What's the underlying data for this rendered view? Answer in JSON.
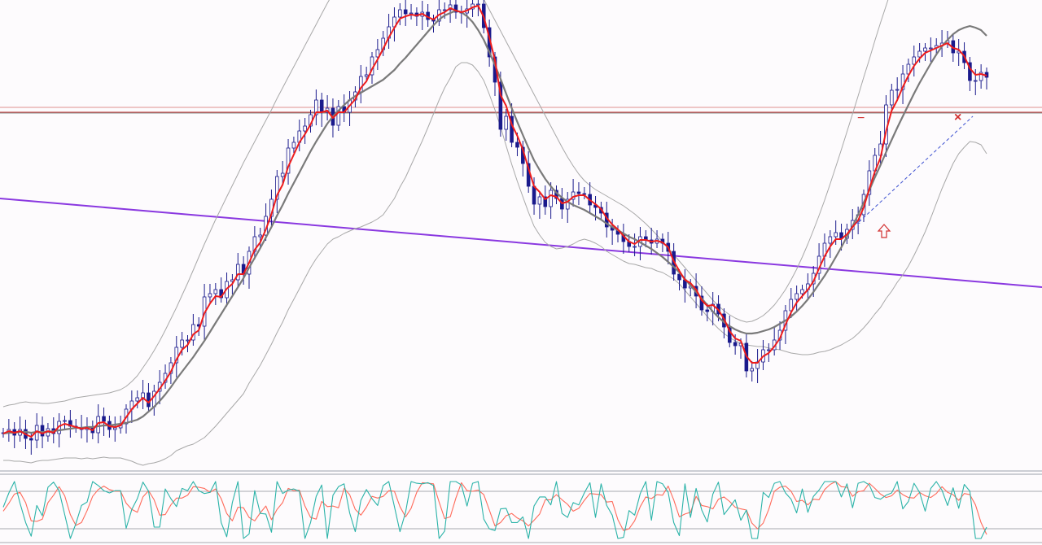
{
  "chart_data": [
    {
      "type": "line",
      "panel": "price",
      "title": "",
      "xlabel": "",
      "ylabel": "",
      "grid": false,
      "legend": "none",
      "close": [
        43,
        47,
        40,
        47,
        36,
        34,
        52,
        39,
        48,
        42,
        57,
        58,
        51,
        49,
        47,
        50,
        43,
        63,
        57,
        47,
        49,
        54,
        72,
        82,
        86,
        92,
        75,
        94,
        105,
        116,
        129,
        148,
        157,
        157,
        176,
        174,
        210,
        214,
        219,
        209,
        229,
        231,
        250,
        238,
        266,
        284,
        286,
        309,
        330,
        358,
        362,
        393,
        400,
        414,
        420,
        434,
        452,
        437,
        442,
        421,
        444,
        437,
        452,
        462,
        481,
        483,
        505,
        514,
        528,
        542,
        554,
        563,
        558,
        559,
        555,
        560,
        551,
        549,
        563,
        563,
        569,
        560,
        559,
        564,
        570,
        570,
        541,
        505,
        474,
        416,
        432,
        400,
        394,
        374,
        346,
        324,
        333,
        321,
        341,
        331,
        318,
        330,
        339,
        337,
        336,
        323,
        320,
        313,
        296,
        292,
        287,
        278,
        272,
        272,
        284,
        280,
        276,
        281,
        276,
        266,
        238,
        231,
        221,
        223,
        211,
        194,
        192,
        201,
        189,
        173,
        154,
        150,
        153,
        119,
        122,
        130,
        145,
        145,
        157,
        169,
        193,
        207,
        214,
        219,
        226,
        239,
        260,
        276,
        284,
        289,
        282,
        293,
        304,
        311,
        336,
        365,
        384,
        398,
        446,
        464,
        465,
        484,
        496,
        505,
        512,
        516,
        516,
        519,
        522,
        525,
        510,
        512,
        498,
        476,
        476,
        486,
        480
      ],
      "bb_mid": [
        42,
        43,
        43,
        44,
        44,
        43,
        44,
        44,
        44,
        45,
        46,
        47,
        48,
        49,
        49,
        50,
        50,
        51,
        52,
        52,
        53,
        54,
        55,
        57,
        59,
        63,
        69,
        75,
        82,
        90,
        99,
        109,
        118,
        127,
        136,
        146,
        156,
        167,
        178,
        189,
        200,
        211,
        222,
        233,
        246,
        258,
        270,
        283,
        296,
        310,
        323,
        337,
        350,
        363,
        376,
        389,
        401,
        412,
        423,
        432,
        439,
        446,
        452,
        457,
        461,
        465,
        469,
        473,
        477,
        483,
        489,
        497,
        504,
        512,
        520,
        528,
        536,
        544,
        551,
        556,
        559,
        562,
        560,
        555,
        548,
        538,
        526,
        511,
        495,
        478,
        460,
        442,
        425,
        409,
        393,
        378,
        366,
        355,
        346,
        338,
        332,
        327,
        323,
        320,
        317,
        313,
        309,
        305,
        300,
        296,
        292,
        288,
        284,
        281,
        277,
        273,
        269,
        264,
        259,
        253,
        247,
        240,
        232,
        224,
        216,
        208,
        200,
        192,
        185,
        179,
        174,
        170,
        167,
        165,
        165,
        166,
        168,
        170,
        173,
        177,
        181,
        186,
        192,
        199,
        207,
        216,
        226,
        236,
        247,
        259,
        271,
        284,
        297,
        311,
        326,
        341,
        357,
        372,
        388,
        403,
        418,
        432,
        446,
        460,
        473,
        485,
        497,
        508,
        518,
        526,
        533,
        538,
        541,
        543,
        541,
        538,
        531
      ],
      "bb_upper": [
        75,
        77,
        78,
        80,
        81,
        80,
        80,
        79,
        79,
        80,
        81,
        82,
        84,
        86,
        87,
        88,
        89,
        90,
        91,
        92,
        94,
        96,
        100,
        106,
        113,
        123,
        133,
        144,
        156,
        169,
        183,
        197,
        212,
        227,
        243,
        259,
        275,
        290,
        305,
        319,
        333,
        347,
        361,
        375,
        388,
        401,
        414,
        427,
        440,
        454,
        467,
        480,
        493,
        506,
        519,
        532,
        545,
        558,
        571,
        583,
        594,
        604,
        613,
        620,
        626,
        631,
        636,
        640,
        643,
        645,
        647,
        649,
        651,
        652,
        653,
        654,
        654,
        653,
        650,
        645,
        639,
        631,
        622,
        612,
        601,
        589,
        576,
        563,
        550,
        537,
        524,
        511,
        498,
        485,
        472,
        459,
        446,
        433,
        420,
        407,
        394,
        382,
        371,
        361,
        353,
        347,
        342,
        338,
        334,
        330,
        326,
        322,
        317,
        312,
        306,
        300,
        293,
        286,
        278,
        270,
        262,
        254,
        246,
        238,
        230,
        222,
        214,
        206,
        199,
        193,
        188,
        184,
        181,
        179,
        180,
        183,
        187,
        193,
        200,
        209,
        219,
        231,
        244,
        259,
        275,
        292,
        310,
        329,
        349,
        370,
        391,
        413,
        435,
        457,
        480,
        502,
        525,
        547,
        568,
        589,
        608,
        627,
        644,
        659,
        671,
        680,
        687,
        691,
        693,
        693,
        692,
        690,
        688,
        685,
        682,
        679,
        676
      ],
      "bb_lower": [
        9,
        9,
        8,
        8,
        7,
        6,
        8,
        9,
        9,
        10,
        11,
        12,
        12,
        12,
        11,
        12,
        11,
        12,
        13,
        12,
        12,
        12,
        10,
        8,
        5,
        3,
        5,
        6,
        8,
        11,
        15,
        21,
        24,
        27,
        29,
        33,
        37,
        44,
        51,
        59,
        67,
        75,
        83,
        91,
        104,
        115,
        126,
        139,
        152,
        166,
        179,
        194,
        207,
        220,
        233,
        246,
        257,
        266,
        275,
        281,
        284,
        288,
        291,
        294,
        296,
        299,
        302,
        306,
        311,
        321,
        331,
        345,
        357,
        372,
        387,
        402,
        418,
        435,
        452,
        467,
        479,
        493,
        498,
        498,
        495,
        487,
        476,
        459,
        440,
        419,
        396,
        373,
        352,
        333,
        314,
        297,
        286,
        277,
        272,
        269,
        270,
        272,
        275,
        279,
        281,
        279,
        276,
        272,
        266,
        262,
        258,
        254,
        251,
        250,
        248,
        246,
        245,
        242,
        240,
        236,
        232,
        226,
        218,
        210,
        202,
        194,
        186,
        178,
        171,
        165,
        160,
        156,
        153,
        151,
        150,
        149,
        149,
        147,
        146,
        145,
        143,
        141,
        140,
        139,
        139,
        140,
        142,
        143,
        145,
        148,
        151,
        155,
        159,
        165,
        172,
        180,
        189,
        197,
        208,
        217,
        228,
        237,
        248,
        261,
        275,
        290,
        307,
        325,
        343,
        359,
        374,
        386,
        394,
        401,
        400,
        397,
        386
      ],
      "ma_fast": [
        42,
        45,
        43,
        45,
        41,
        38,
        45,
        42,
        45,
        43,
        51,
        54,
        52,
        50,
        48,
        49,
        46,
        55,
        56,
        51,
        50,
        52,
        62,
        72,
        79,
        86,
        80,
        88,
        97,
        107,
        118,
        133,
        145,
        151,
        164,
        169,
        190,
        202,
        211,
        210,
        220,
        226,
        238,
        238,
        252,
        268,
        277,
        293,
        312,
        335,
        348,
        370,
        385,
        400,
        410,
        422,
        437,
        437,
        439,
        430,
        437,
        437,
        445,
        453,
        467,
        475,
        490,
        502,
        515,
        529,
        541,
        552,
        555,
        557,
        556,
        558,
        554,
        551,
        557,
        560,
        565,
        562,
        560,
        562,
        566,
        568,
        554,
        529,
        501,
        458,
        445,
        422,
        408,
        391,
        368,
        346,
        339,
        330,
        335,
        333,
        325,
        327,
        333,
        335,
        335,
        329,
        324,
        318,
        307,
        299,
        293,
        285,
        278,
        275,
        280,
        280,
        278,
        279,
        277,
        271,
        254,
        242,
        231,
        227,
        219,
        206,
        199,
        200,
        194,
        183,
        168,
        159,
        156,
        137,
        129,
        129,
        137,
        141,
        149,
        159,
        176,
        191,
        203,
        211,
        219,
        229,
        245,
        260,
        272,
        281,
        281,
        287,
        296,
        304,
        320,
        343,
        364,
        381,
        414,
        439,
        452,
        468,
        482,
        494,
        503,
        510,
        513,
        516,
        519,
        522,
        516,
        514,
        506,
        491,
        483,
        484,
        482
      ],
      "trend_line": {
        "start": 410,
        "end": 320
      },
      "resistance_levels": [
        [
          443,
          "#e09090"
        ],
        [
          437,
          "#c03030"
        ],
        [
          436,
          "#909090"
        ]
      ]
    },
    {
      "type": "line",
      "panel": "oscillator",
      "title": "",
      "xlabel": "",
      "ylabel": "",
      "grid": false,
      "legend": "none",
      "ylim": [
        0,
        100
      ],
      "levels": [
        80,
        20
      ],
      "k": [
        55,
        80,
        100,
        62,
        28,
        4,
        58,
        40,
        90,
        99,
        84,
        42,
        0,
        26,
        58,
        64,
        100,
        93,
        84,
        80,
        84,
        84,
        18,
        51,
        70,
        99,
        83,
        20,
        20,
        87,
        70,
        56,
        88,
        84,
        100,
        84,
        79,
        81,
        100,
        28,
        3,
        63,
        100,
        0,
        8,
        84,
        44,
        43,
        11,
        100,
        79,
        85,
        87,
        83,
        0,
        28,
        74,
        94,
        0,
        76,
        91,
        96,
        45,
        12,
        67,
        86,
        70,
        58,
        93,
        100,
        56,
        12,
        46,
        100,
        97,
        96,
        98,
        93,
        0,
        13,
        100,
        100,
        94,
        57,
        97,
        100,
        34,
        17,
        14,
        52,
        53,
        28,
        28,
        38,
        0,
        57,
        73,
        73,
        59,
        100,
        44,
        37,
        63,
        59,
        80,
        98,
        37,
        96,
        58,
        41,
        0,
        2,
        49,
        41,
        79,
        100,
        32,
        100,
        96,
        81,
        28,
        5,
        96,
        37,
        88,
        50,
        29,
        78,
        99,
        42,
        55,
        68,
        32,
        50,
        0,
        0,
        81,
        72,
        97,
        100,
        80,
        69,
        45,
        87,
        46,
        74,
        85,
        100,
        100,
        100,
        73,
        96,
        54,
        97,
        100,
        94,
        72,
        69,
        76,
        80,
        100,
        52,
        65,
        97,
        81,
        48,
        88,
        100,
        85,
        58,
        89,
        53,
        95,
        83,
        0,
        0,
        20
      ],
      "d": [
        48,
        62,
        78,
        81,
        63,
        31,
        30,
        34,
        63,
        76,
        91,
        75,
        42,
        23,
        28,
        49,
        74,
        86,
        92,
        86,
        83,
        83,
        62,
        51,
        46,
        73,
        84,
        68,
        41,
        42,
        59,
        71,
        71,
        76,
        91,
        90,
        88,
        81,
        87,
        70,
        44,
        31,
        55,
        54,
        37,
        31,
        45,
        57,
        33,
        51,
        63,
        88,
        84,
        85,
        57,
        37,
        34,
        65,
        56,
        57,
        54,
        88,
        77,
        51,
        41,
        55,
        74,
        71,
        74,
        84,
        83,
        56,
        38,
        53,
        81,
        98,
        97,
        96,
        64,
        35,
        38,
        71,
        98,
        84,
        83,
        85,
        77,
        50,
        22,
        28,
        40,
        44,
        36,
        31,
        22,
        32,
        43,
        68,
        68,
        77,
        68,
        60,
        48,
        53,
        67,
        79,
        78,
        77,
        64,
        65,
        33,
        14,
        17,
        31,
        56,
        73,
        70,
        77,
        76,
        92,
        68,
        38,
        43,
        46,
        74,
        58,
        56,
        52,
        69,
        73,
        65,
        55,
        52,
        50,
        27,
        17,
        27,
        51,
        83,
        90,
        92,
        83,
        65,
        67,
        59,
        69,
        68,
        86,
        95,
        100,
        91,
        90,
        74,
        82,
        84,
        97,
        88,
        78,
        72,
        75,
        85,
        77,
        72,
        71,
        81,
        75,
        72,
        79,
        91,
        81,
        77,
        67,
        79,
        77,
        59,
        28,
        7
      ]
    }
  ]
}
